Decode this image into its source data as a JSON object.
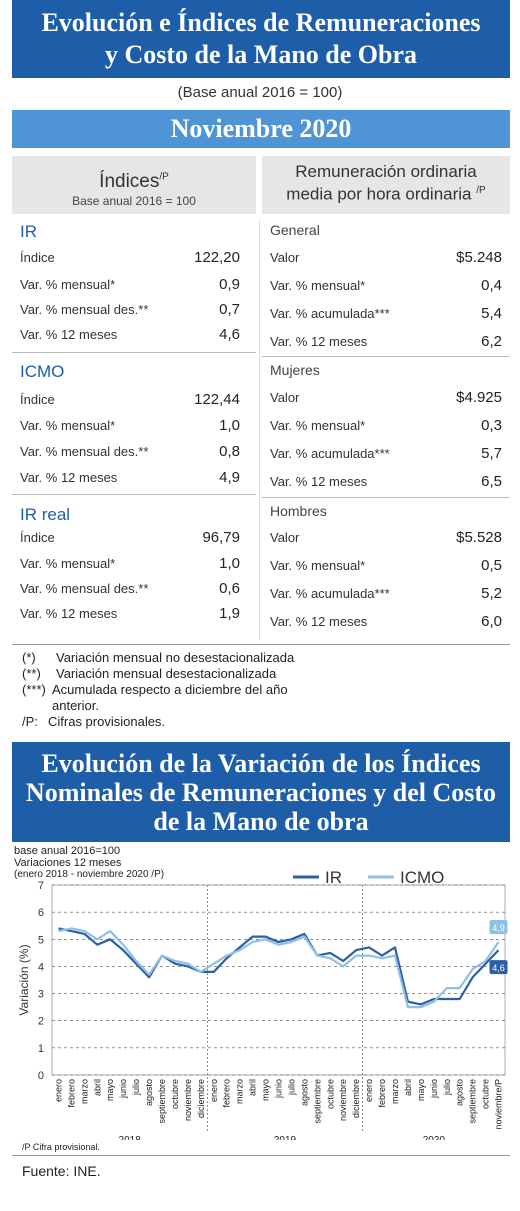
{
  "header": {
    "title_line1": "Evolución e Índices de Remuneraciones",
    "title_line2": "y Costo de la Mano de Obra",
    "base": "(Base anual 2016 = 100)",
    "month": "Noviembre 2020"
  },
  "left_panel": {
    "title": "Índices",
    "title_sup": "/P",
    "subtitle": "Base anual 2016 = 100",
    "groups": [
      {
        "name": "IR",
        "rows": [
          {
            "label": "Índice",
            "value": "122,20"
          },
          {
            "label": "Var. % mensual*",
            "value": "0,9"
          },
          {
            "label": "Var. % mensual des.**",
            "value": "0,7"
          },
          {
            "label": "Var. % 12 meses",
            "value": "4,6"
          }
        ]
      },
      {
        "name": "ICMO",
        "rows": [
          {
            "label": "Índice",
            "value": "122,44"
          },
          {
            "label": "Var. % mensual*",
            "value": "1,0"
          },
          {
            "label": "Var. % mensual des.**",
            "value": "0,8"
          },
          {
            "label": "Var. % 12 meses",
            "value": "4,9"
          }
        ]
      },
      {
        "name": "IR real",
        "rows": [
          {
            "label": "Índice",
            "value": "96,79"
          },
          {
            "label": "Var. % mensual*",
            "value": "1,0"
          },
          {
            "label": "Var. % mensual des.**",
            "value": "0,6"
          },
          {
            "label": "Var. % 12 meses",
            "value": "1,9"
          }
        ]
      }
    ]
  },
  "right_panel": {
    "title_line1": "Remuneración ordinaria",
    "title_line2": "media por hora ordinaria",
    "title_sup": "/P",
    "groups": [
      {
        "name": "General",
        "rows": [
          {
            "label": "Valor",
            "value": "$5.248"
          },
          {
            "label": "Var. % mensual*",
            "value": "0,4"
          },
          {
            "label": "Var. % acumulada***",
            "value": "5,4"
          },
          {
            "label": "Var. % 12 meses",
            "value": "6,2"
          }
        ]
      },
      {
        "name": "Mujeres",
        "rows": [
          {
            "label": "Valor",
            "value": "$4.925"
          },
          {
            "label": "Var. % mensual*",
            "value": "0,3"
          },
          {
            "label": "Var. % acumulada***",
            "value": "5,7"
          },
          {
            "label": "Var. % 12 meses",
            "value": "6,5"
          }
        ]
      },
      {
        "name": "Hombres",
        "rows": [
          {
            "label": "Valor",
            "value": "$5.528"
          },
          {
            "label": "Var. % mensual*",
            "value": "0,5"
          },
          {
            "label": "Var. % acumulada***",
            "value": "5,2"
          },
          {
            "label": "Var. % 12 meses",
            "value": "6,0"
          }
        ]
      }
    ]
  },
  "notes": [
    {
      "key": "(*)",
      "text": "Variación mensual no desestacionalizada"
    },
    {
      "key": "(**)",
      "text": "Variación mensual desestacionalizada"
    },
    {
      "key": "(***)",
      "text": "Acumulada respecto a diciembre del año anterior."
    },
    {
      "key": "/P:",
      "text": "Cifras provisionales."
    }
  ],
  "chart_section": {
    "title_line1": "Evolución de la Variación de los Índices",
    "title_line2": "Nominales de Remuneraciones y del Costo",
    "title_line3": "de la Mano de obra",
    "caption1": "base anual 2016=100",
    "caption2": "Variaciones 12 meses",
    "caption3": "(enero 2018 - noviembre 2020 /P)",
    "footnote": "/P Cifra provisional.",
    "source": "Fuente: INE."
  },
  "chart_data": {
    "type": "line",
    "title": "",
    "xlabel": "",
    "ylabel": "Variación (%)",
    "ylim": [
      0,
      7
    ],
    "yticks": [
      0,
      1,
      2,
      3,
      4,
      5,
      6,
      7
    ],
    "grid": true,
    "legend_position": "top-right",
    "month_labels": [
      "enero",
      "febrero",
      "marzo",
      "abril",
      "mayo",
      "junio",
      "julio",
      "agosto",
      "septiembre",
      "octubre",
      "noviembre",
      "diciembre",
      "enero",
      "febrero",
      "marzo",
      "abril",
      "mayo",
      "junio",
      "julio",
      "agosto",
      "septiembre",
      "octubre",
      "noviembre",
      "diciembre",
      "enero",
      "febrero",
      "marzo",
      "abril",
      "mayo",
      "junio",
      "julio",
      "agosto",
      "septiembre",
      "octubre",
      "noviembre/P"
    ],
    "years": [
      {
        "label": "2018",
        "start": 0,
        "end": 11
      },
      {
        "label": "2019",
        "start": 12,
        "end": 23
      },
      {
        "label": "2020",
        "start": 24,
        "end": 34
      }
    ],
    "series": [
      {
        "name": "IR",
        "color": "#2d5fa6",
        "values": [
          5.4,
          5.3,
          5.2,
          4.8,
          5.0,
          4.6,
          4.1,
          3.6,
          4.4,
          4.1,
          4.0,
          3.8,
          3.8,
          4.3,
          4.7,
          5.1,
          5.1,
          4.9,
          5.0,
          5.2,
          4.4,
          4.5,
          4.2,
          4.6,
          4.7,
          4.4,
          4.7,
          2.7,
          2.6,
          2.8,
          2.8,
          2.8,
          3.6,
          4.1,
          4.6
        ],
        "end_label": "4,6"
      },
      {
        "name": "ICMO",
        "color": "#8ec0e6",
        "values": [
          5.3,
          5.4,
          5.3,
          5.0,
          5.3,
          4.8,
          4.2,
          3.7,
          4.4,
          4.2,
          4.1,
          3.8,
          4.1,
          4.4,
          4.6,
          4.9,
          5.0,
          4.8,
          4.9,
          5.1,
          4.4,
          4.3,
          4.0,
          4.4,
          4.4,
          4.3,
          4.4,
          2.5,
          2.5,
          2.7,
          3.2,
          3.2,
          3.9,
          4.2,
          4.9
        ],
        "end_label": "4,9"
      }
    ]
  }
}
